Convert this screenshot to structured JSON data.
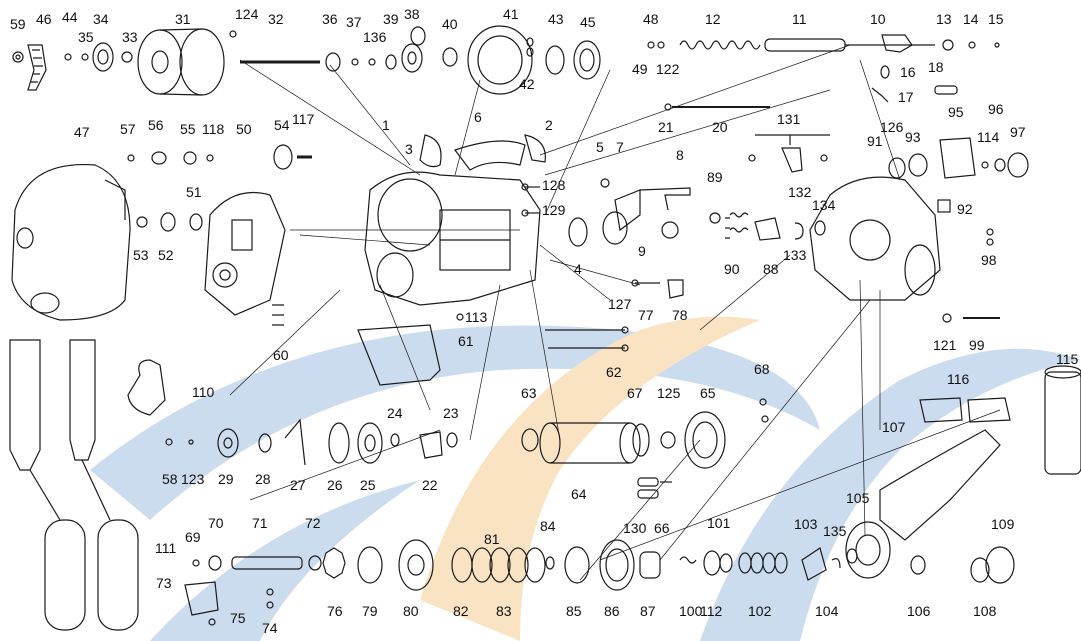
{
  "parts": [
    "59",
    "46",
    "44",
    "34",
    "35",
    "33",
    "31",
    "124",
    "32",
    "36",
    "37",
    "136",
    "39",
    "38",
    "40",
    "41",
    "43",
    "45",
    "42",
    "48",
    "49",
    "122",
    "12",
    "11",
    "10",
    "13",
    "14",
    "15",
    "16",
    "17",
    "18",
    "47",
    "57",
    "56",
    "55",
    "118",
    "50",
    "54",
    "117",
    "1",
    "2",
    "3",
    "6",
    "5",
    "7",
    "8",
    "128",
    "129",
    "4",
    "9",
    "89",
    "90",
    "88",
    "133",
    "134",
    "132",
    "131",
    "126",
    "93",
    "95",
    "114",
    "96",
    "97",
    "91",
    "92",
    "98",
    "21",
    "20",
    "51",
    "53",
    "52",
    "60",
    "113",
    "61",
    "77",
    "78",
    "127",
    "62",
    "110",
    "58",
    "123",
    "29",
    "28",
    "27",
    "26",
    "25",
    "24",
    "22",
    "23",
    "63",
    "64",
    "67",
    "125",
    "65",
    "68",
    "121",
    "99",
    "130",
    "66",
    "115",
    "116",
    "107",
    "111",
    "69",
    "70",
    "71",
    "72",
    "73",
    "74",
    "75",
    "76",
    "79",
    "80",
    "81",
    "82",
    "83",
    "84",
    "85",
    "86",
    "87",
    "100",
    "101",
    "112",
    "102",
    "103",
    "104",
    "105",
    "135",
    "106",
    "108",
    "109"
  ],
  "colors": {
    "ink": "#1a1a1a",
    "background": "#ffffff",
    "watermark_blue": "#5e8fc6",
    "watermark_orange": "#f1b25a"
  }
}
